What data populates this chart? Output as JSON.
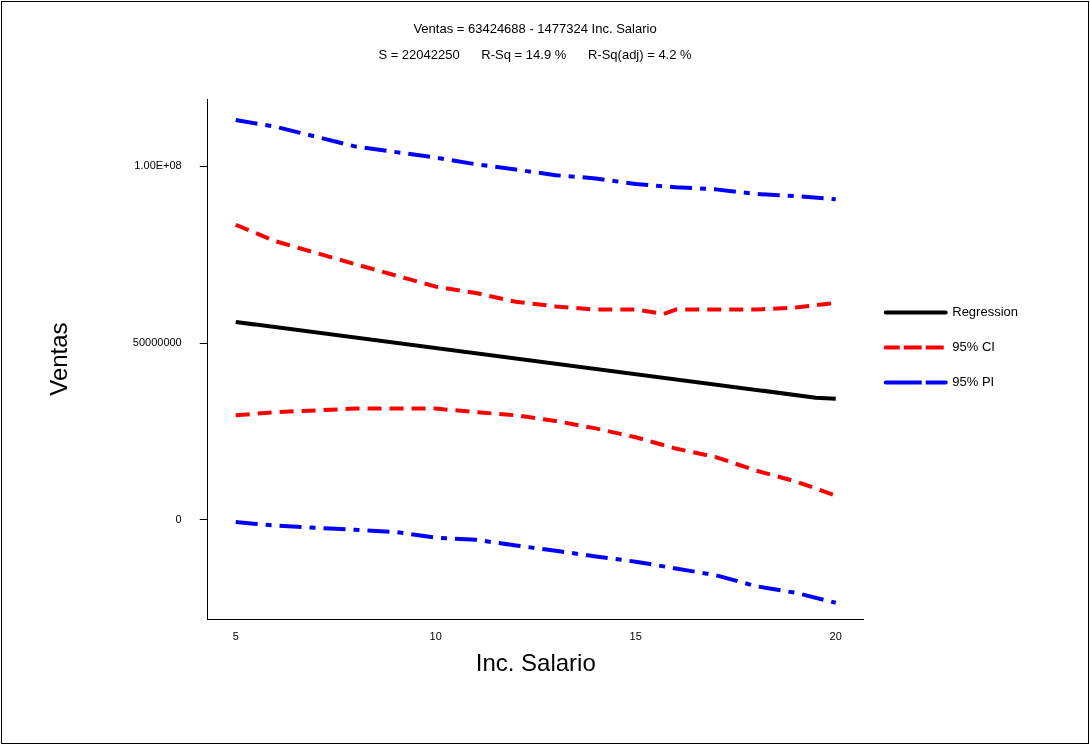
{
  "chart_data": {
    "type": "line",
    "title": "Ventas = 63424688 - 1477324 Inc. Salario",
    "subtitle": "S = 22042250      R-Sq = 14.9 %      R-Sq(adj) = 4.2 %",
    "xlabel": "Inc. Salario",
    "ylabel": "Ventas",
    "xlim": [
      4.3,
      20.7
    ],
    "xticks": [
      5,
      10,
      15,
      20
    ],
    "ylim": [
      -28000000,
      119000000
    ],
    "yticks": [
      {
        "value": 0,
        "label": "0"
      },
      {
        "value": 50000000,
        "label": "50000000"
      },
      {
        "value": 100000000,
        "label": "1.00E+08"
      }
    ],
    "grid": false,
    "legend": "right",
    "marker": "none",
    "series": [
      {
        "name": "Regression",
        "color": "#000000",
        "line_style": "solid",
        "x": [
          5,
          19.5,
          20
        ],
        "values": [
          56000000,
          34600000,
          34300000
        ]
      },
      {
        "name": "95% CI",
        "color": "#ff0000",
        "line_style": "dashed",
        "x": [
          5,
          6,
          8,
          10,
          11,
          12,
          13,
          14,
          15,
          15.7,
          16,
          18,
          19,
          20
        ],
        "values": [
          83500000,
          78800000,
          72300000,
          66000000,
          64200000,
          61700000,
          60400000,
          59500000,
          59500000,
          58300000,
          59500000,
          59500000,
          60100000,
          61400000
        ]
      },
      {
        "color": "#ff0000",
        "line_style": "dashed",
        "x": [
          5,
          6,
          8,
          10,
          11,
          12,
          13,
          14,
          15,
          16,
          17,
          18,
          19,
          20
        ],
        "values": [
          29600000,
          30500000,
          31500000,
          31500000,
          30500000,
          29600000,
          28000000,
          25900000,
          23400000,
          20200000,
          17800000,
          14000000,
          10900000,
          6900000
        ]
      },
      {
        "name": "95% PI",
        "color": "#0000ff",
        "line_style": "dashdot",
        "x": [
          5,
          6,
          8,
          10,
          11,
          12,
          13,
          14,
          15,
          16,
          17,
          18,
          19,
          20
        ],
        "values": [
          113100000,
          111200000,
          105600000,
          102500000,
          100600000,
          99100000,
          97500000,
          96600000,
          95000000,
          94100000,
          93500000,
          92200000,
          91600000,
          90700000
        ]
      },
      {
        "color": "#0000ff",
        "line_style": "dashdot",
        "x": [
          5,
          6,
          7.5,
          9,
          10,
          11,
          12,
          13,
          14,
          15,
          16,
          17,
          18,
          19,
          20
        ],
        "values": [
          -600000,
          -1600000,
          -2500000,
          -3400000,
          -5000000,
          -5600000,
          -7200000,
          -8700000,
          -10300000,
          -11800000,
          -13700000,
          -15600000,
          -18700000,
          -20600000,
          -23400000
        ]
      }
    ]
  }
}
